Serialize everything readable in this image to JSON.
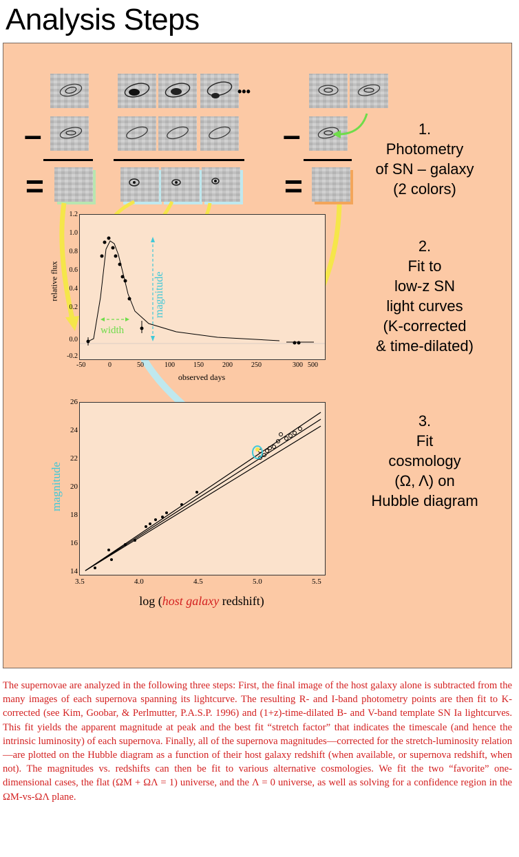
{
  "title": "Analysis Steps",
  "steps": [
    {
      "num": "1.",
      "lines": [
        "Photometry",
        "of SN – galaxy",
        "(2 colors)"
      ]
    },
    {
      "num": "2.",
      "lines": [
        "Fit to",
        "low-z SN",
        "light curves",
        "(K-corrected",
        "& time-dilated)"
      ]
    },
    {
      "num": "3.",
      "lines": [
        "Fit",
        "cosmology",
        "(Ω, Λ) on",
        "Hubble diagram"
      ]
    }
  ],
  "operators": {
    "minus": "–",
    "equals": "=",
    "ellipsis": "•••"
  },
  "lightcurve": {
    "ylabel": "relative flux",
    "xlabel": "observed days",
    "annotation_width": "width",
    "annotation_magnitude": "magnitude",
    "yticks": [
      "1.2",
      "1.0",
      "0.8",
      "0.6",
      "0.4",
      "0.2",
      "0.0",
      "-0.2"
    ],
    "xticks": [
      "-50",
      "0",
      "50",
      "100",
      "150",
      "200",
      "250",
      "300",
      "500"
    ]
  },
  "hubble": {
    "ylabel": "magnitude",
    "xlabel_prefix": "log (",
    "xlabel_highlight": "host galaxy",
    "xlabel_suffix": " redshift)",
    "yticks": [
      "26",
      "24",
      "22",
      "20",
      "18",
      "16",
      "14"
    ],
    "xticks": [
      "3.5",
      "4.0",
      "4.5",
      "5.0",
      "5.5"
    ]
  },
  "caption": "The supernovae are analyzed in the following three steps:  First, the final image of the host galaxy alone is subtracted from the many images of each supernova spanning its lightcurve. The resulting R- and I-band photometry points are then fit to K-corrected (see Kim, Goobar, & Perlmutter, P.A.S.P. 1996) and (1+z)-time-dilated B- and V-band template SN Ia lightcurves. This fit yields the apparent magnitude at peak and the best fit “stretch factor” that indicates the timescale (and hence the intrinsic luminosity) of each supernova.  Finally, all of the supernova magnitudes—corrected for the stretch-luminosity relation—are plotted on the Hubble diagram as a function of their host galaxy redshift (when available, or supernova redshift, when not). The magnitudes vs. redshifts can then be fit to various alternative cosmologies.   We fit the two “favorite” one-dimensional cases, the flat (ΩM + ΩΛ = 1) universe, and the Λ = 0 universe, as well as solving for a confidence region in the ΩM-vs-ΩΛ plane.",
  "colors": {
    "caption": "#d31f1f",
    "panel": "#fcc9a5",
    "arrow_yellow": "#f5e64a",
    "arrow_cyan": "#bfe8ee",
    "annot_green": "#6fdc4a",
    "annot_cyan": "#3fc8d8"
  }
}
